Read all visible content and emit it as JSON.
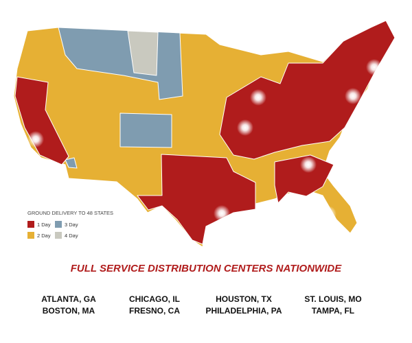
{
  "legend": {
    "title": "GROUND DELIVERY TO 48 STATES",
    "items": [
      {
        "label": "1 Day",
        "color": "#b01c1c"
      },
      {
        "label": "3 Day",
        "color": "#7f9cb0"
      },
      {
        "label": "2 Day",
        "color": "#e6b034"
      },
      {
        "label": "4 Day",
        "color": "#c9c9bf"
      }
    ]
  },
  "heading": "FULL SERVICE DISTRIBUTION CENTERS NATIONWIDE",
  "cities": [
    [
      "ATLANTA, GA",
      "BOSTON, MA"
    ],
    [
      "CHICAGO, IL",
      "FRESNO, CA"
    ],
    [
      "HOUSTON, TX",
      "PHILADELPHIA, PA"
    ],
    [
      "ST. LOUIS, MO",
      "TAMPA, FL"
    ]
  ]
}
